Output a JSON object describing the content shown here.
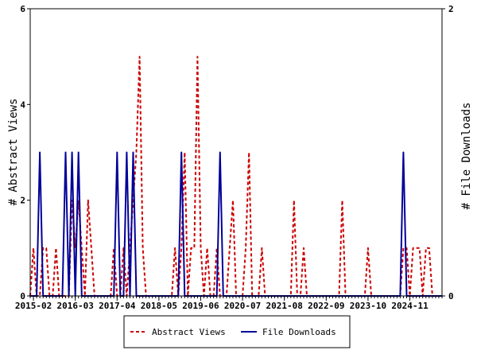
{
  "chart_data": {
    "type": "line",
    "title": "",
    "xlabel": "",
    "ylabel": "# Abstract Views",
    "y2label": "# File Downloads",
    "x_tick_labels": [
      "2015-02",
      "2016-03",
      "2017-04",
      "2018-05",
      "2019-06",
      "2020-07",
      "2021-08",
      "2022-09",
      "2023-10",
      "2024-11"
    ],
    "x_start": "2015-01",
    "x_end": "2025-09",
    "ylim": [
      0,
      6
    ],
    "y_ticks": [
      0,
      2,
      4,
      6
    ],
    "y2lim": [
      0,
      2
    ],
    "y2_ticks": [
      0,
      2
    ],
    "grid": false,
    "legend_position": "bottom-center",
    "series": [
      {
        "name": "Abstract Views",
        "axis": "left",
        "color": "#cc0000",
        "style": "dashed",
        "points": [
          [
            "2015-01",
            0
          ],
          [
            "2015-02",
            1
          ],
          [
            "2015-03",
            0
          ],
          [
            "2015-04",
            0
          ],
          [
            "2015-05",
            1
          ],
          [
            "2015-06",
            1
          ],
          [
            "2015-07",
            0
          ],
          [
            "2015-08",
            0
          ],
          [
            "2015-09",
            1
          ],
          [
            "2015-10",
            0
          ],
          [
            "2015-11",
            0
          ],
          [
            "2015-12",
            0
          ],
          [
            "2016-01",
            0
          ],
          [
            "2016-02",
            2
          ],
          [
            "2016-03",
            1
          ],
          [
            "2016-04",
            2
          ],
          [
            "2016-05",
            1
          ],
          [
            "2016-06",
            0
          ],
          [
            "2016-07",
            2
          ],
          [
            "2016-08",
            1
          ],
          [
            "2016-09",
            0
          ],
          [
            "2016-10",
            0
          ],
          [
            "2016-11",
            0
          ],
          [
            "2016-12",
            0
          ],
          [
            "2017-01",
            0
          ],
          [
            "2017-02",
            0
          ],
          [
            "2017-03",
            1
          ],
          [
            "2017-04",
            0
          ],
          [
            "2017-05",
            0
          ],
          [
            "2017-06",
            1
          ],
          [
            "2017-07",
            0
          ],
          [
            "2017-08",
            1
          ],
          [
            "2017-09",
            2
          ],
          [
            "2017-10",
            3
          ],
          [
            "2017-11",
            5
          ],
          [
            "2017-12",
            1
          ],
          [
            "2018-01",
            0
          ],
          [
            "2018-02",
            0
          ],
          [
            "2018-03",
            0
          ],
          [
            "2018-04",
            0
          ],
          [
            "2018-05",
            0
          ],
          [
            "2018-06",
            0
          ],
          [
            "2018-07",
            0
          ],
          [
            "2018-08",
            0
          ],
          [
            "2018-09",
            0
          ],
          [
            "2018-10",
            1
          ],
          [
            "2018-11",
            0
          ],
          [
            "2018-12",
            1
          ],
          [
            "2019-01",
            3
          ],
          [
            "2019-02",
            0
          ],
          [
            "2019-03",
            1
          ],
          [
            "2019-04",
            1
          ],
          [
            "2019-05",
            5
          ],
          [
            "2019-06",
            1
          ],
          [
            "2019-07",
            0
          ],
          [
            "2019-08",
            1
          ],
          [
            "2019-09",
            0
          ],
          [
            "2019-10",
            0
          ],
          [
            "2019-11",
            1
          ],
          [
            "2019-12",
            0
          ],
          [
            "2020-01",
            0
          ],
          [
            "2020-02",
            0
          ],
          [
            "2020-03",
            1
          ],
          [
            "2020-04",
            2
          ],
          [
            "2020-05",
            0
          ],
          [
            "2020-06",
            0
          ],
          [
            "2020-07",
            0
          ],
          [
            "2020-08",
            1
          ],
          [
            "2020-09",
            3
          ],
          [
            "2020-10",
            0
          ],
          [
            "2020-11",
            0
          ],
          [
            "2020-12",
            0
          ],
          [
            "2021-01",
            1
          ],
          [
            "2021-02",
            0
          ],
          [
            "2021-03",
            0
          ],
          [
            "2021-04",
            0
          ],
          [
            "2021-05",
            0
          ],
          [
            "2021-06",
            0
          ],
          [
            "2021-07",
            0
          ],
          [
            "2021-08",
            0
          ],
          [
            "2021-09",
            0
          ],
          [
            "2021-10",
            0
          ],
          [
            "2021-11",
            2
          ],
          [
            "2021-12",
            0
          ],
          [
            "2022-01",
            0
          ],
          [
            "2022-02",
            1
          ],
          [
            "2022-03",
            0
          ],
          [
            "2022-04",
            0
          ],
          [
            "2022-05",
            0
          ],
          [
            "2022-06",
            0
          ],
          [
            "2022-07",
            0
          ],
          [
            "2022-08",
            0
          ],
          [
            "2022-09",
            0
          ],
          [
            "2022-10",
            0
          ],
          [
            "2022-11",
            0
          ],
          [
            "2022-12",
            0
          ],
          [
            "2023-01",
            0
          ],
          [
            "2023-02",
            2
          ],
          [
            "2023-03",
            0
          ],
          [
            "2023-04",
            0
          ],
          [
            "2023-05",
            0
          ],
          [
            "2023-06",
            0
          ],
          [
            "2023-07",
            0
          ],
          [
            "2023-08",
            0
          ],
          [
            "2023-09",
            0
          ],
          [
            "2023-10",
            1
          ],
          [
            "2023-11",
            0
          ],
          [
            "2023-12",
            0
          ],
          [
            "2024-01",
            0
          ],
          [
            "2024-02",
            0
          ],
          [
            "2024-03",
            0
          ],
          [
            "2024-04",
            0
          ],
          [
            "2024-05",
            0
          ],
          [
            "2024-06",
            0
          ],
          [
            "2024-07",
            0
          ],
          [
            "2024-08",
            0
          ],
          [
            "2024-09",
            1
          ],
          [
            "2024-10",
            1
          ],
          [
            "2024-11",
            0
          ],
          [
            "2024-12",
            1
          ],
          [
            "2025-01",
            1
          ],
          [
            "2025-02",
            1
          ],
          [
            "2025-03",
            0
          ],
          [
            "2025-04",
            1
          ],
          [
            "2025-05",
            1
          ],
          [
            "2025-06",
            0
          ],
          [
            "2025-07",
            0
          ],
          [
            "2025-08",
            0
          ],
          [
            "2025-09",
            0
          ]
        ]
      },
      {
        "name": "File Downloads",
        "axis": "right",
        "color": "#000099",
        "style": "solid",
        "points": [
          [
            "2015-01",
            0
          ],
          [
            "2015-02",
            0
          ],
          [
            "2015-03",
            0
          ],
          [
            "2015-04",
            1
          ],
          [
            "2015-05",
            0
          ],
          [
            "2015-06",
            0
          ],
          [
            "2015-07",
            0
          ],
          [
            "2015-08",
            0
          ],
          [
            "2015-09",
            0
          ],
          [
            "2015-10",
            0
          ],
          [
            "2015-11",
            0
          ],
          [
            "2015-12",
            1
          ],
          [
            "2016-01",
            0
          ],
          [
            "2016-02",
            1
          ],
          [
            "2016-03",
            0
          ],
          [
            "2016-04",
            1
          ],
          [
            "2016-05",
            0
          ],
          [
            "2016-06",
            0
          ],
          [
            "2016-07",
            0
          ],
          [
            "2016-08",
            0
          ],
          [
            "2016-09",
            0
          ],
          [
            "2016-10",
            0
          ],
          [
            "2016-11",
            0
          ],
          [
            "2016-12",
            0
          ],
          [
            "2017-01",
            0
          ],
          [
            "2017-02",
            0
          ],
          [
            "2017-03",
            0
          ],
          [
            "2017-04",
            1
          ],
          [
            "2017-05",
            0
          ],
          [
            "2017-06",
            0
          ],
          [
            "2017-07",
            1
          ],
          [
            "2017-08",
            0
          ],
          [
            "2017-09",
            1
          ],
          [
            "2017-10",
            0
          ],
          [
            "2017-11",
            0
          ],
          [
            "2017-12",
            0
          ],
          [
            "2018-01",
            0
          ],
          [
            "2018-02",
            0
          ],
          [
            "2018-03",
            0
          ],
          [
            "2018-04",
            0
          ],
          [
            "2018-05",
            0
          ],
          [
            "2018-06",
            0
          ],
          [
            "2018-07",
            0
          ],
          [
            "2018-08",
            0
          ],
          [
            "2018-09",
            0
          ],
          [
            "2018-10",
            0
          ],
          [
            "2018-11",
            0
          ],
          [
            "2018-12",
            1
          ],
          [
            "2019-01",
            0
          ],
          [
            "2019-02",
            0
          ],
          [
            "2019-03",
            0
          ],
          [
            "2019-04",
            0
          ],
          [
            "2019-05",
            0
          ],
          [
            "2019-06",
            0
          ],
          [
            "2019-07",
            0
          ],
          [
            "2019-08",
            0
          ],
          [
            "2019-09",
            0
          ],
          [
            "2019-10",
            0
          ],
          [
            "2019-11",
            0
          ],
          [
            "2019-12",
            1
          ],
          [
            "2020-01",
            0
          ],
          [
            "2020-02",
            0
          ],
          [
            "2020-03",
            0
          ],
          [
            "2020-04",
            0
          ],
          [
            "2020-05",
            0
          ],
          [
            "2020-06",
            0
          ],
          [
            "2020-07",
            0
          ],
          [
            "2020-08",
            0
          ],
          [
            "2020-09",
            0
          ],
          [
            "2020-10",
            0
          ],
          [
            "2020-11",
            0
          ],
          [
            "2020-12",
            0
          ],
          [
            "2021-01",
            0
          ],
          [
            "2021-02",
            0
          ],
          [
            "2021-03",
            0
          ],
          [
            "2021-04",
            0
          ],
          [
            "2021-05",
            0
          ],
          [
            "2021-06",
            0
          ],
          [
            "2021-07",
            0
          ],
          [
            "2021-08",
            0
          ],
          [
            "2021-09",
            0
          ],
          [
            "2021-10",
            0
          ],
          [
            "2021-11",
            0
          ],
          [
            "2021-12",
            0
          ],
          [
            "2022-01",
            0
          ],
          [
            "2022-02",
            0
          ],
          [
            "2022-03",
            0
          ],
          [
            "2022-04",
            0
          ],
          [
            "2022-05",
            0
          ],
          [
            "2022-06",
            0
          ],
          [
            "2022-07",
            0
          ],
          [
            "2022-08",
            0
          ],
          [
            "2022-09",
            0
          ],
          [
            "2022-10",
            0
          ],
          [
            "2022-11",
            0
          ],
          [
            "2022-12",
            0
          ],
          [
            "2023-01",
            0
          ],
          [
            "2023-02",
            0
          ],
          [
            "2023-03",
            0
          ],
          [
            "2023-04",
            0
          ],
          [
            "2023-05",
            0
          ],
          [
            "2023-06",
            0
          ],
          [
            "2023-07",
            0
          ],
          [
            "2023-08",
            0
          ],
          [
            "2023-09",
            0
          ],
          [
            "2023-10",
            0
          ],
          [
            "2023-11",
            0
          ],
          [
            "2023-12",
            0
          ],
          [
            "2024-01",
            0
          ],
          [
            "2024-02",
            0
          ],
          [
            "2024-03",
            0
          ],
          [
            "2024-04",
            0
          ],
          [
            "2024-05",
            0
          ],
          [
            "2024-06",
            0
          ],
          [
            "2024-07",
            0
          ],
          [
            "2024-08",
            0
          ],
          [
            "2024-09",
            1
          ],
          [
            "2024-10",
            0
          ],
          [
            "2024-11",
            0
          ],
          [
            "2024-12",
            0
          ],
          [
            "2025-01",
            0
          ],
          [
            "2025-02",
            0
          ],
          [
            "2025-03",
            0
          ],
          [
            "2025-04",
            0
          ],
          [
            "2025-05",
            0
          ],
          [
            "2025-06",
            0
          ],
          [
            "2025-07",
            0
          ],
          [
            "2025-08",
            0
          ],
          [
            "2025-09",
            0
          ]
        ]
      }
    ]
  }
}
